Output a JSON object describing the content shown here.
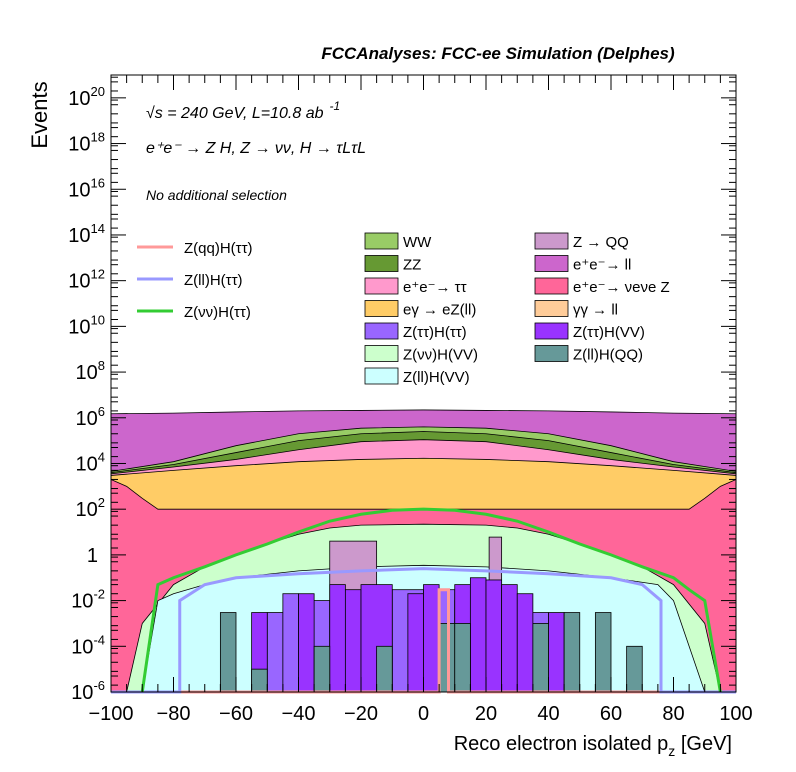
{
  "header": {
    "title": "FCCAnalyses: FCC-ee Simulation (Delphes)",
    "sqrt_s_symbol": "√s",
    "sqrt_s_text": " = 240 GeV, L=10.8 ab",
    "lumi_exponent": "-1",
    "process": "e⁺e⁻ → Z H, Z → νν, H → τLτL",
    "selection": "No additional selection"
  },
  "chart_data": {
    "type": "area",
    "x_label": "Reco electron isolated p",
    "x_label_sub": "z",
    "x_label_unit": " [GeV]",
    "y_label": "Events",
    "xlim": [
      -100,
      100
    ],
    "ylim": [
      1e-06,
      1e+21
    ],
    "log_y": true,
    "x_ticks": [
      "−100",
      "−80",
      "−60",
      "−40",
      "−20",
      "0",
      "20",
      "40",
      "60",
      "80",
      "100"
    ],
    "y_ticks": [
      {
        "base": "10",
        "exp": "20",
        "value": 1e+20
      },
      {
        "base": "10",
        "exp": "18",
        "value": 1e+18
      },
      {
        "base": "10",
        "exp": "16",
        "value": 1e+16
      },
      {
        "base": "10",
        "exp": "14",
        "value": 100000000000000.0
      },
      {
        "base": "10",
        "exp": "12",
        "value": 1000000000000.0
      },
      {
        "base": "10",
        "exp": "10",
        "value": 10000000000.0
      },
      {
        "base": "10",
        "exp": "8",
        "value": 100000000.0
      },
      {
        "base": "10",
        "exp": "6",
        "value": 1000000.0
      },
      {
        "base": "10",
        "exp": "4",
        "value": 10000.0
      },
      {
        "base": "10",
        "exp": "2",
        "value": 100.0
      },
      {
        "base": "1",
        "exp": "",
        "value": 1
      },
      {
        "base": "10",
        "exp": "-2",
        "value": 0.01
      },
      {
        "base": "10",
        "exp": "-4",
        "value": 0.0001
      },
      {
        "base": "10",
        "exp": "-6",
        "value": 1e-06
      }
    ],
    "stack_layers": [
      {
        "name": "Z(ll)H(VV)",
        "color": "#ccffff",
        "x": [
          -90,
          -85,
          -80,
          -70,
          -60,
          -40,
          -20,
          0,
          20,
          40,
          60,
          75,
          80,
          90
        ],
        "y": [
          1e-06,
          0.01,
          0.02,
          0.05,
          0.1,
          0.2,
          0.3,
          0.35,
          0.3,
          0.2,
          0.1,
          0.05,
          0.01,
          1e-06
        ]
      },
      {
        "name": "Z(νν)H(VV)",
        "color": "#ccffcc",
        "x": [
          -95,
          -90,
          -80,
          -70,
          -60,
          -50,
          -40,
          -30,
          -20,
          0,
          20,
          30,
          40,
          50,
          60,
          70,
          80,
          90,
          95
        ],
        "y": [
          1e-06,
          0.001,
          0.05,
          0.3,
          1,
          3,
          8,
          15,
          20,
          22,
          20,
          15,
          8,
          3,
          1,
          0.3,
          0.05,
          0.001,
          1e-06
        ]
      },
      {
        "name": "eγ → eZ(ll)",
        "color": "#ffcc66",
        "x": [
          -100,
          -80,
          -60,
          -40,
          -20,
          0,
          20,
          40,
          60,
          80,
          100
        ],
        "y": [
          3000,
          5000,
          8000,
          12000,
          15000,
          17000,
          15000,
          12000,
          8000,
          5000,
          3000
        ]
      },
      {
        "name": "e⁺e⁻ → ττ",
        "color": "#ff99cc",
        "x": [
          -100,
          -80,
          -60,
          -40,
          -20,
          0,
          20,
          40,
          60,
          80,
          100
        ],
        "y": [
          3500,
          7000,
          15000,
          40000,
          90000,
          110000,
          90000,
          40000,
          15000,
          7000,
          3500
        ]
      },
      {
        "name": "ZZ",
        "color": "#669933",
        "x": [
          -100,
          -80,
          -60,
          -40,
          -20,
          0,
          20,
          40,
          60,
          80,
          100
        ],
        "y": [
          4000,
          9000,
          30000,
          100000,
          200000,
          250000,
          200000,
          100000,
          30000,
          9000,
          4000
        ]
      },
      {
        "name": "WW",
        "color": "#99cc66",
        "x": [
          -100,
          -80,
          -60,
          -40,
          -20,
          0,
          20,
          40,
          60,
          80,
          100
        ],
        "y": [
          4500,
          12000,
          60000,
          200000,
          350000,
          400000,
          350000,
          200000,
          60000,
          12000,
          4500
        ]
      },
      {
        "name": "e⁺e⁻ → ll",
        "color": "#cc66cc",
        "x": [
          -100,
          -80,
          -60,
          -40,
          -20,
          0,
          20,
          40,
          60,
          80,
          100
        ],
        "y": [
          1500000,
          1600000,
          1800000,
          2000000,
          2100000,
          2200000,
          2100000,
          2000000,
          1800000,
          1600000,
          1500000
        ]
      }
    ],
    "pink_floor": {
      "name": "e⁺e⁻ → νeνe Z",
      "color": "#ff6699",
      "x": [
        -100,
        -95,
        -90,
        -85,
        -80,
        -70,
        -60,
        -50,
        -40,
        -30,
        -20,
        0,
        20,
        30,
        40,
        50,
        60,
        70,
        80,
        85,
        90,
        95,
        100
      ],
      "y": [
        2000,
        1000,
        300,
        100,
        100,
        100,
        100,
        100,
        100,
        100,
        100,
        100,
        100,
        100,
        100,
        100,
        100,
        100,
        100,
        100,
        300,
        1000,
        2000
      ]
    },
    "bins": [
      {
        "name": "Z → QQ",
        "color": "#cc99cc",
        "edges": [
          [
            -30,
            -15,
            4
          ],
          [
            21,
            25,
            6
          ]
        ]
      },
      {
        "name": "Z(ττ)H(ττ)",
        "color": "#9966ff",
        "edges": [
          [
            -50,
            -45,
            0.003
          ],
          [
            -45,
            -40,
            0.02
          ],
          [
            -40,
            -30,
            0.01
          ],
          [
            -30,
            -20,
            0.01
          ],
          [
            -20,
            -10,
            0.003
          ],
          [
            -10,
            0,
            0.03
          ],
          [
            0,
            10,
            0.03
          ],
          [
            10,
            20,
            0.01
          ],
          [
            20,
            30,
            0.01
          ],
          [
            30,
            40,
            0.003
          ]
        ]
      },
      {
        "name": "Z(ττ)H(VV)",
        "color": "#9933ff",
        "edges": [
          [
            -55,
            -50,
            0.003
          ],
          [
            -40,
            -35,
            0.02
          ],
          [
            -30,
            -25,
            0.05
          ],
          [
            -25,
            -20,
            0.03
          ],
          [
            -20,
            -10,
            0.05
          ],
          [
            -5,
            0,
            0.02
          ],
          [
            0,
            5,
            0.05
          ],
          [
            10,
            15,
            0.05
          ],
          [
            15,
            20,
            0.1
          ],
          [
            20,
            25,
            0.08
          ],
          [
            25,
            30,
            0.05
          ],
          [
            30,
            35,
            0.02
          ],
          [
            40,
            45,
            0.003
          ]
        ]
      },
      {
        "name": "Z(ll)H(QQ)",
        "color": "#669999",
        "edges": [
          [
            -65,
            -60,
            0.003
          ],
          [
            -55,
            -50,
            1e-05
          ],
          [
            -35,
            -30,
            0.0001
          ],
          [
            -15,
            -10,
            0.0001
          ],
          [
            5,
            10,
            0.001
          ],
          [
            10,
            15,
            0.001
          ],
          [
            35,
            40,
            0.001
          ],
          [
            45,
            50,
            0.003
          ],
          [
            55,
            60,
            0.003
          ],
          [
            65,
            70,
            0.0001
          ]
        ]
      }
    ],
    "signal_lines": [
      {
        "name": "Z(qq)H(ττ)",
        "color": "#ff9999",
        "x": [
          -100,
          5,
          5,
          8,
          8,
          100
        ],
        "y": [
          1e-06,
          1e-06,
          0.03,
          0.03,
          1e-06,
          1e-06
        ]
      },
      {
        "name": "Z(ll)H(ττ)",
        "color": "#9999ff",
        "x": [
          -100,
          -78,
          -78,
          -70,
          -60,
          -40,
          -20,
          0,
          20,
          40,
          60,
          70,
          76,
          76,
          100
        ],
        "y": [
          1e-06,
          1e-06,
          0.01,
          0.05,
          0.1,
          0.15,
          0.2,
          0.25,
          0.2,
          0.15,
          0.1,
          0.05,
          0.01,
          1e-06,
          1e-06
        ]
      },
      {
        "name": "Z(νν)H(ττ)",
        "color": "#33cc33",
        "x": [
          -90,
          -85,
          -80,
          -70,
          -60,
          -50,
          -40,
          -30,
          -20,
          -10,
          0,
          10,
          20,
          30,
          40,
          50,
          60,
          70,
          80,
          85,
          90,
          95
        ],
        "y": [
          1e-06,
          0.05,
          0.1,
          0.3,
          1,
          3,
          10,
          30,
          60,
          90,
          100,
          90,
          60,
          30,
          10,
          3,
          1,
          0.3,
          0.1,
          0.03,
          0.01,
          1e-06
        ]
      }
    ]
  },
  "legend": {
    "signals": [
      {
        "label": "Z(qq)H(ττ)",
        "color": "#ff9999"
      },
      {
        "label": "Z(ll)H(ττ)",
        "color": "#9999ff"
      },
      {
        "label": "Z(νν)H(ττ)",
        "color": "#33cc33"
      }
    ],
    "backgrounds_col1": [
      {
        "label": "WW",
        "color": "#99cc66"
      },
      {
        "label": "ZZ",
        "color": "#669933"
      },
      {
        "label": "e⁺e⁻→ ττ",
        "color": "#ff99cc"
      },
      {
        "label": "eγ → eZ(ll)",
        "color": "#ffcc66"
      },
      {
        "label": "Z(ττ)H(ττ)",
        "color": "#9966ff"
      },
      {
        "label": "Z(νν)H(VV)",
        "color": "#ccffcc"
      },
      {
        "label": "Z(ll)H(VV)",
        "color": "#ccffff"
      }
    ],
    "backgrounds_col2": [
      {
        "label": "Z → QQ",
        "color": "#cc99cc"
      },
      {
        "label": "e⁺e⁻→ ll",
        "color": "#cc66cc"
      },
      {
        "label": "e⁺e⁻→ νeνe Z",
        "color": "#ff6699"
      },
      {
        "label": "γγ → ll",
        "color": "#ffcc99"
      },
      {
        "label": "Z(ττ)H(VV)",
        "color": "#9933ff"
      },
      {
        "label": "Z(ll)H(QQ)",
        "color": "#669999"
      }
    ]
  }
}
